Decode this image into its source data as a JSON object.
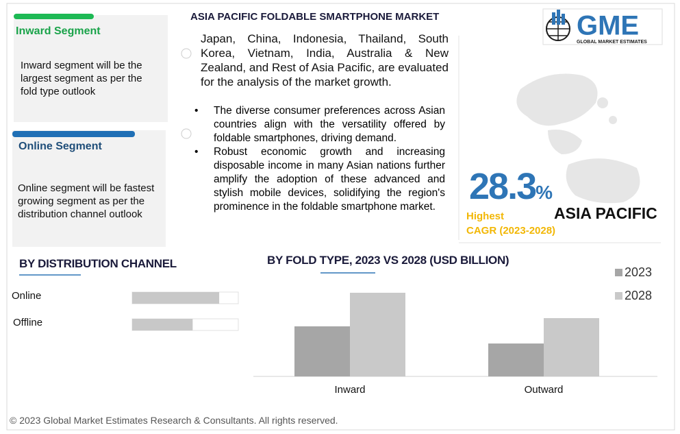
{
  "header": {
    "title": "ASIA PACIFIC FOLDABLE SMARTPHONE MARKET"
  },
  "panels": [
    {
      "title": "Inward Segment",
      "text": "Inward segment will be the largest segment as per the fold type outlook"
    },
    {
      "title": "Online Segment",
      "text": "Online segment will be fastest growing segment as per the distribution channel outlook"
    }
  ],
  "intro": "Japan, China, Indonesia, Thailand, South Korea, Vietnam, India, Australia & New Zealand, and Rest of Asia Pacific, are evaluated for the analysis of the market growth.",
  "bullets": [
    "The diverse consumer preferences across Asian countries align with the versatility offered by foldable smartphones, driving demand.",
    "Robust economic growth and increasing disposable income in many Asian nations further amplify the adoption of these advanced and stylish mobile devices, solidifying the region's prominence in the foldable smartphone market."
  ],
  "logo": {
    "text": "GME",
    "subtitle": "GLOBAL MARKET ESTIMATES"
  },
  "highlight": {
    "value": 28.3,
    "unit": "%",
    "label": "Highest",
    "sublabel": "CAGR (2023-2028)",
    "region": "ASIA PACIFIC"
  },
  "chart_data": [
    {
      "type": "hbar",
      "title": "BY DISTRIBUTION CHANNEL",
      "categories": [
        "Online",
        "Offline"
      ],
      "values": [
        82,
        57
      ],
      "xlim": [
        0,
        100
      ],
      "color": "#c8c8c8"
    },
    {
      "type": "bar",
      "title": "BY FOLD TYPE, 2023 VS 2028 (USD BILLION)",
      "categories": [
        "Inward",
        "Outward"
      ],
      "series": [
        {
          "name": "2023",
          "color": "#a6a6a6",
          "values": [
            73,
            48
          ]
        },
        {
          "name": "2028",
          "color": "#c9c9c9",
          "values": [
            122,
            85
          ]
        }
      ],
      "ylim": [
        0,
        140
      ]
    }
  ],
  "footer": "© 2023 Global Market Estimates Research & Consultants. All rights reserved."
}
